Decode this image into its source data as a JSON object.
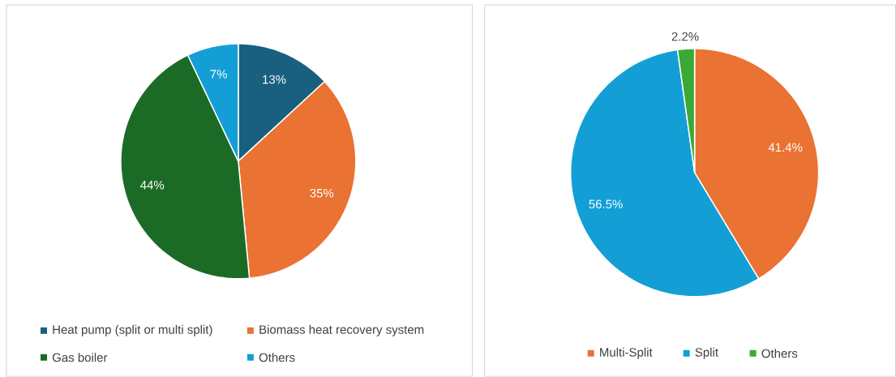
{
  "chart_data": [
    {
      "type": "pie",
      "categories": [
        "Heat pump (split or multi split)",
        "Biomass heat recovery system",
        "Gas boiler",
        "Others"
      ],
      "values": [
        13,
        35,
        44,
        7
      ],
      "colors": [
        "#195f80",
        "#ea7232",
        "#1b6b26",
        "#139fd6"
      ],
      "value_labels": [
        "13%",
        "35%",
        "44%",
        "7%"
      ],
      "legend": "bottom"
    },
    {
      "type": "pie",
      "categories": [
        "Multi-Split",
        "Split",
        "Others"
      ],
      "values": [
        41.4,
        56.5,
        2.2
      ],
      "colors": [
        "#ea7232",
        "#139fd6",
        "#3aa935"
      ],
      "value_labels": [
        "41.4%",
        "56.5%",
        "2.2%"
      ],
      "legend": "bottom"
    }
  ]
}
